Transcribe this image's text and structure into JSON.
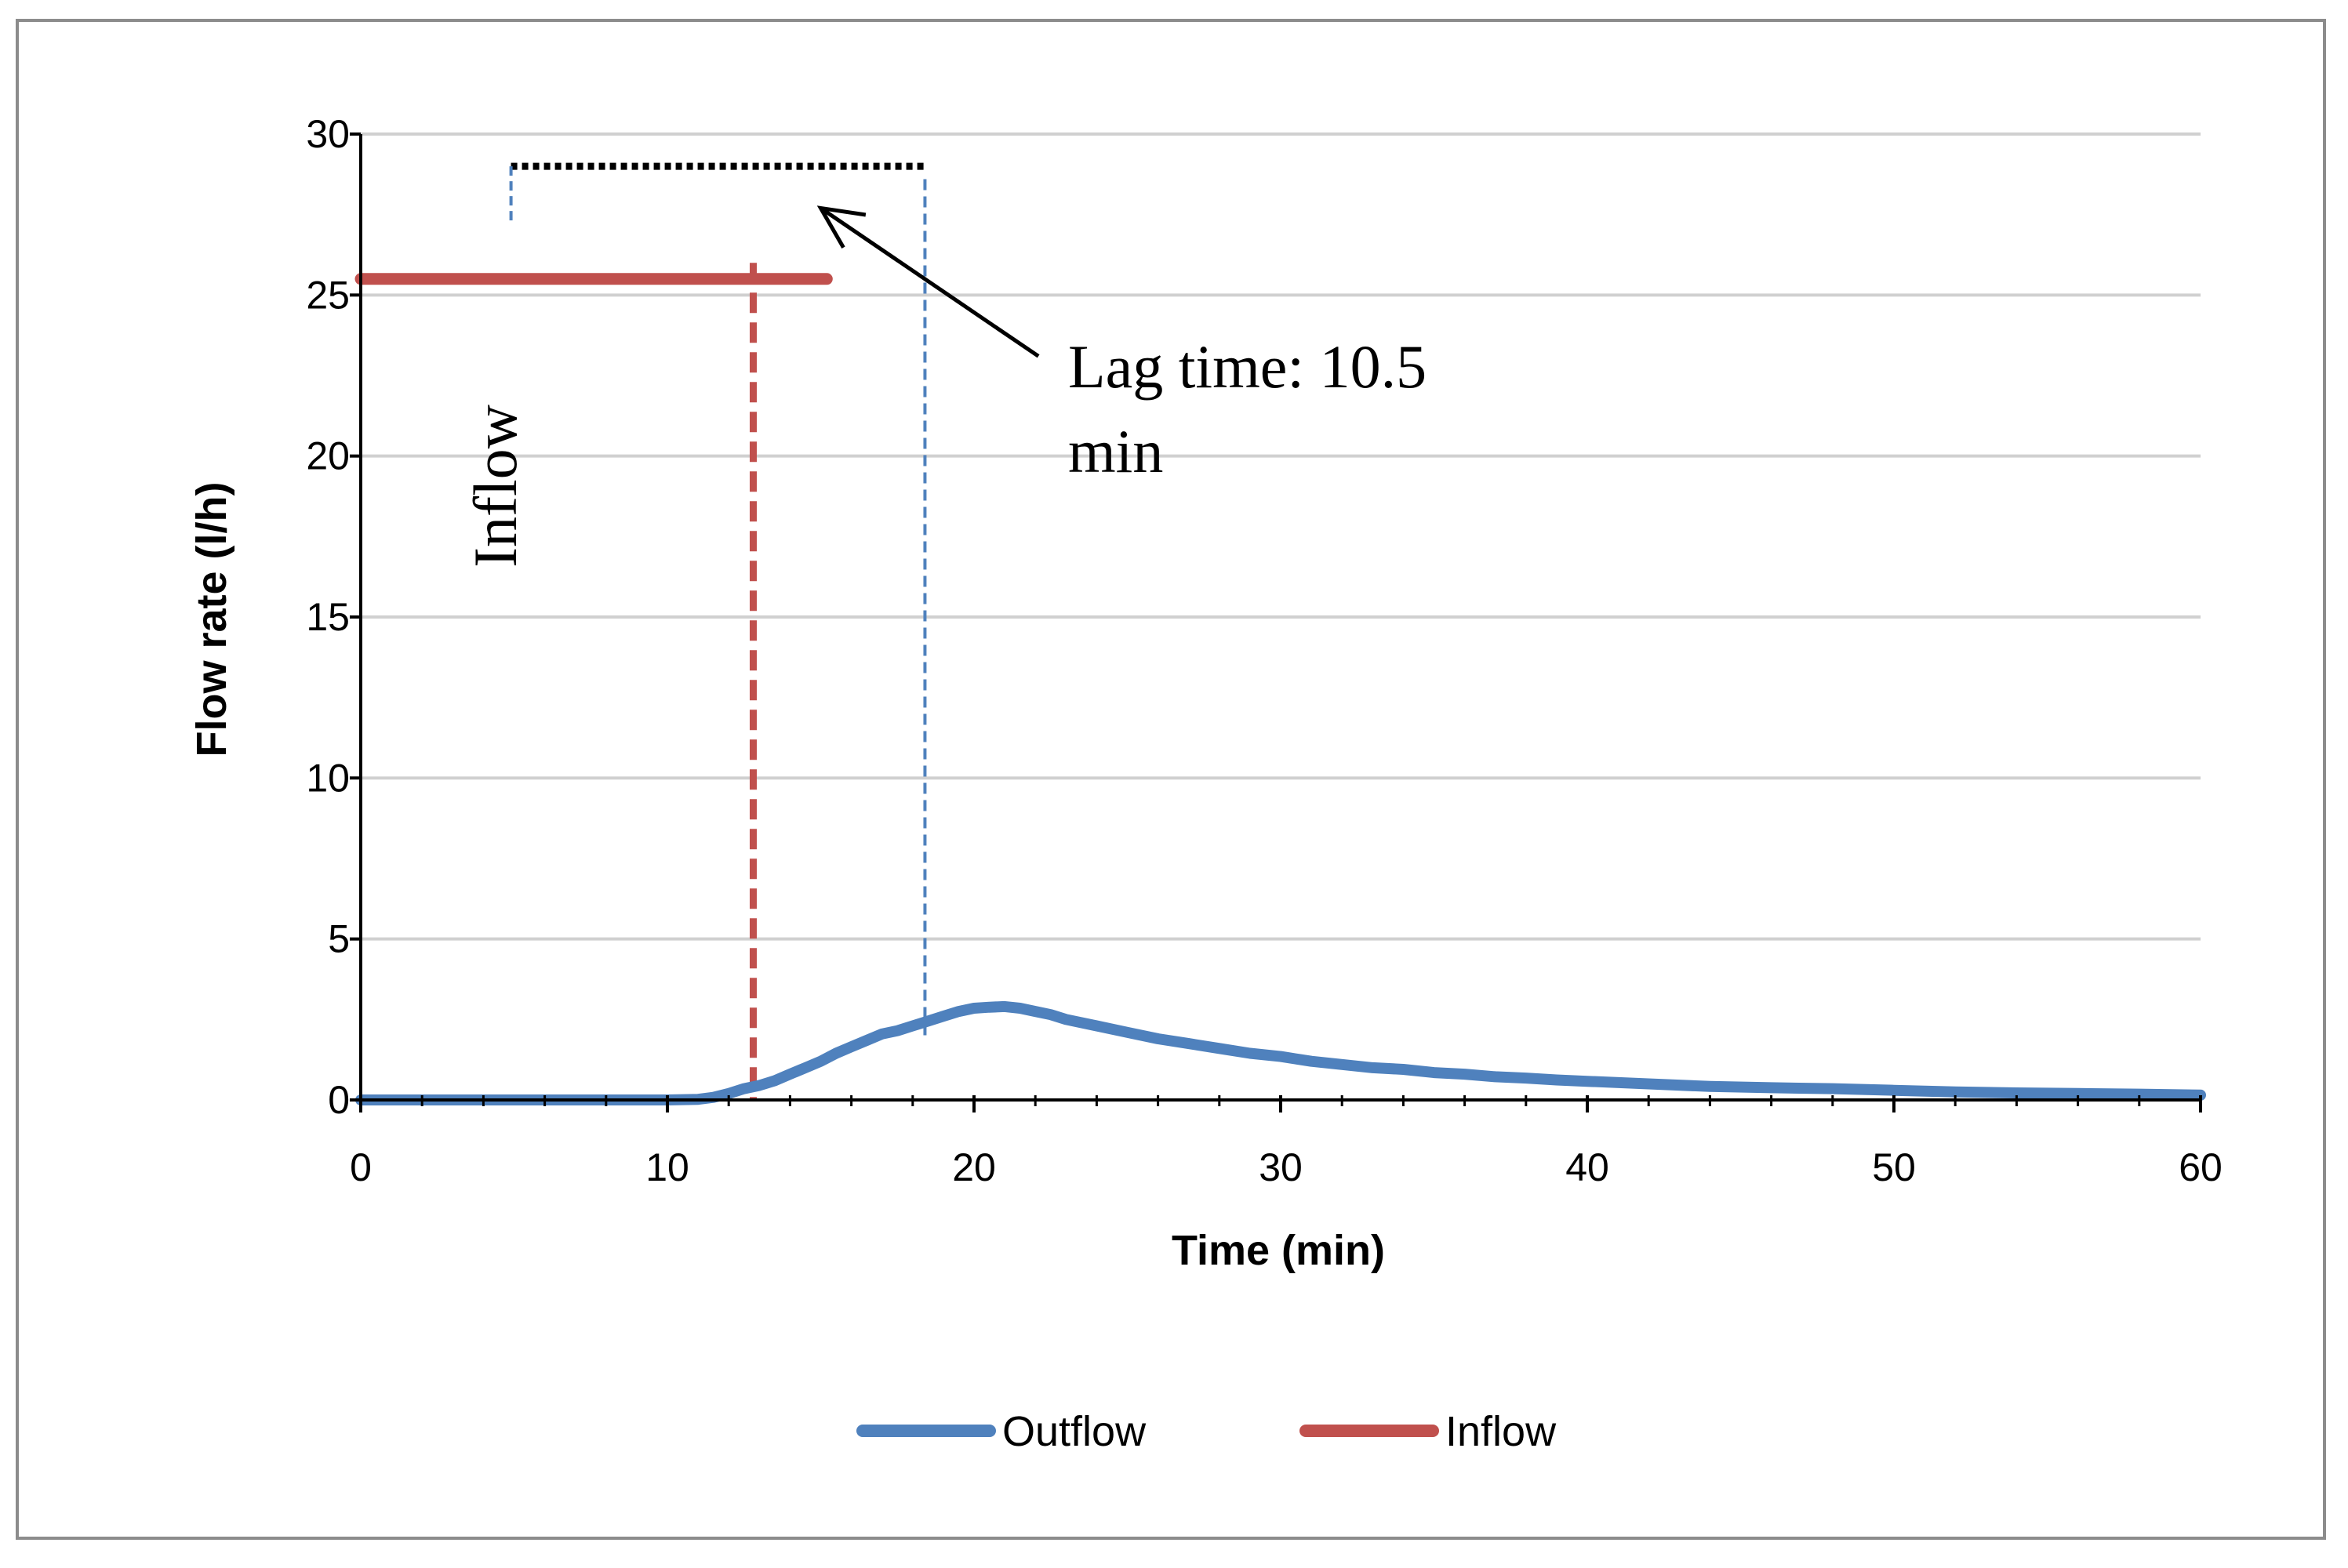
{
  "chart_data": {
    "type": "line",
    "title": "",
    "xlabel": "Time (min)",
    "ylabel": "Flow  rate (l/h)",
    "xlim": [
      0,
      60
    ],
    "ylim": [
      0,
      30
    ],
    "x_ticks": [
      0,
      10,
      20,
      30,
      40,
      50,
      60
    ],
    "y_ticks": [
      0,
      5,
      10,
      15,
      20,
      25,
      30
    ],
    "grid": "horizontal",
    "legend_position": "bottom",
    "colors": {
      "outflow": "#4f81bd",
      "inflow": "#c0504d",
      "grid": "#d0d0d0",
      "axis": "#000000"
    },
    "series": [
      {
        "name": "Outflow",
        "x": [
          0,
          10,
          11,
          11.5,
          12,
          12.5,
          13,
          13.5,
          14,
          14.5,
          15,
          15.5,
          16,
          16.5,
          17,
          17.5,
          18,
          18.5,
          19,
          19.5,
          20,
          20.5,
          21,
          21.5,
          22,
          22.5,
          23,
          24,
          25,
          26,
          27,
          28,
          29,
          30,
          31,
          32,
          33,
          34,
          35,
          36,
          37,
          38,
          39,
          40,
          42,
          44,
          46,
          48,
          50,
          52,
          54,
          56,
          58,
          60
        ],
        "values": [
          0,
          0,
          0.02,
          0.08,
          0.2,
          0.35,
          0.45,
          0.6,
          0.8,
          1.0,
          1.2,
          1.45,
          1.65,
          1.85,
          2.05,
          2.15,
          2.3,
          2.45,
          2.6,
          2.75,
          2.85,
          2.88,
          2.9,
          2.85,
          2.75,
          2.65,
          2.5,
          2.3,
          2.1,
          1.9,
          1.75,
          1.6,
          1.45,
          1.35,
          1.2,
          1.1,
          1.0,
          0.95,
          0.85,
          0.8,
          0.72,
          0.68,
          0.62,
          0.58,
          0.5,
          0.42,
          0.38,
          0.35,
          0.3,
          0.25,
          0.22,
          0.2,
          0.18,
          0.15
        ]
      },
      {
        "name": "Inflow",
        "x": [
          0,
          15.2
        ],
        "values": [
          25.5,
          25.5
        ]
      }
    ],
    "annotations": {
      "vertical_text": "Inflow",
      "lag_text_line1": "Lag time: 10.5",
      "lag_text_line2": "min",
      "lag_start": 12.8,
      "lag_end": 18.4,
      "bracket_left_x": 4.9,
      "bracket_y": 29.0,
      "bracket_left_y_bottom": 27.2,
      "arrow_tip": [
        15.0,
        27.7
      ],
      "arrow_tail": [
        22.1,
        23.1
      ],
      "red_dash_top": 26.0,
      "blue_dash_top": 28.6,
      "blue_dash_bottom": 2.0
    }
  }
}
